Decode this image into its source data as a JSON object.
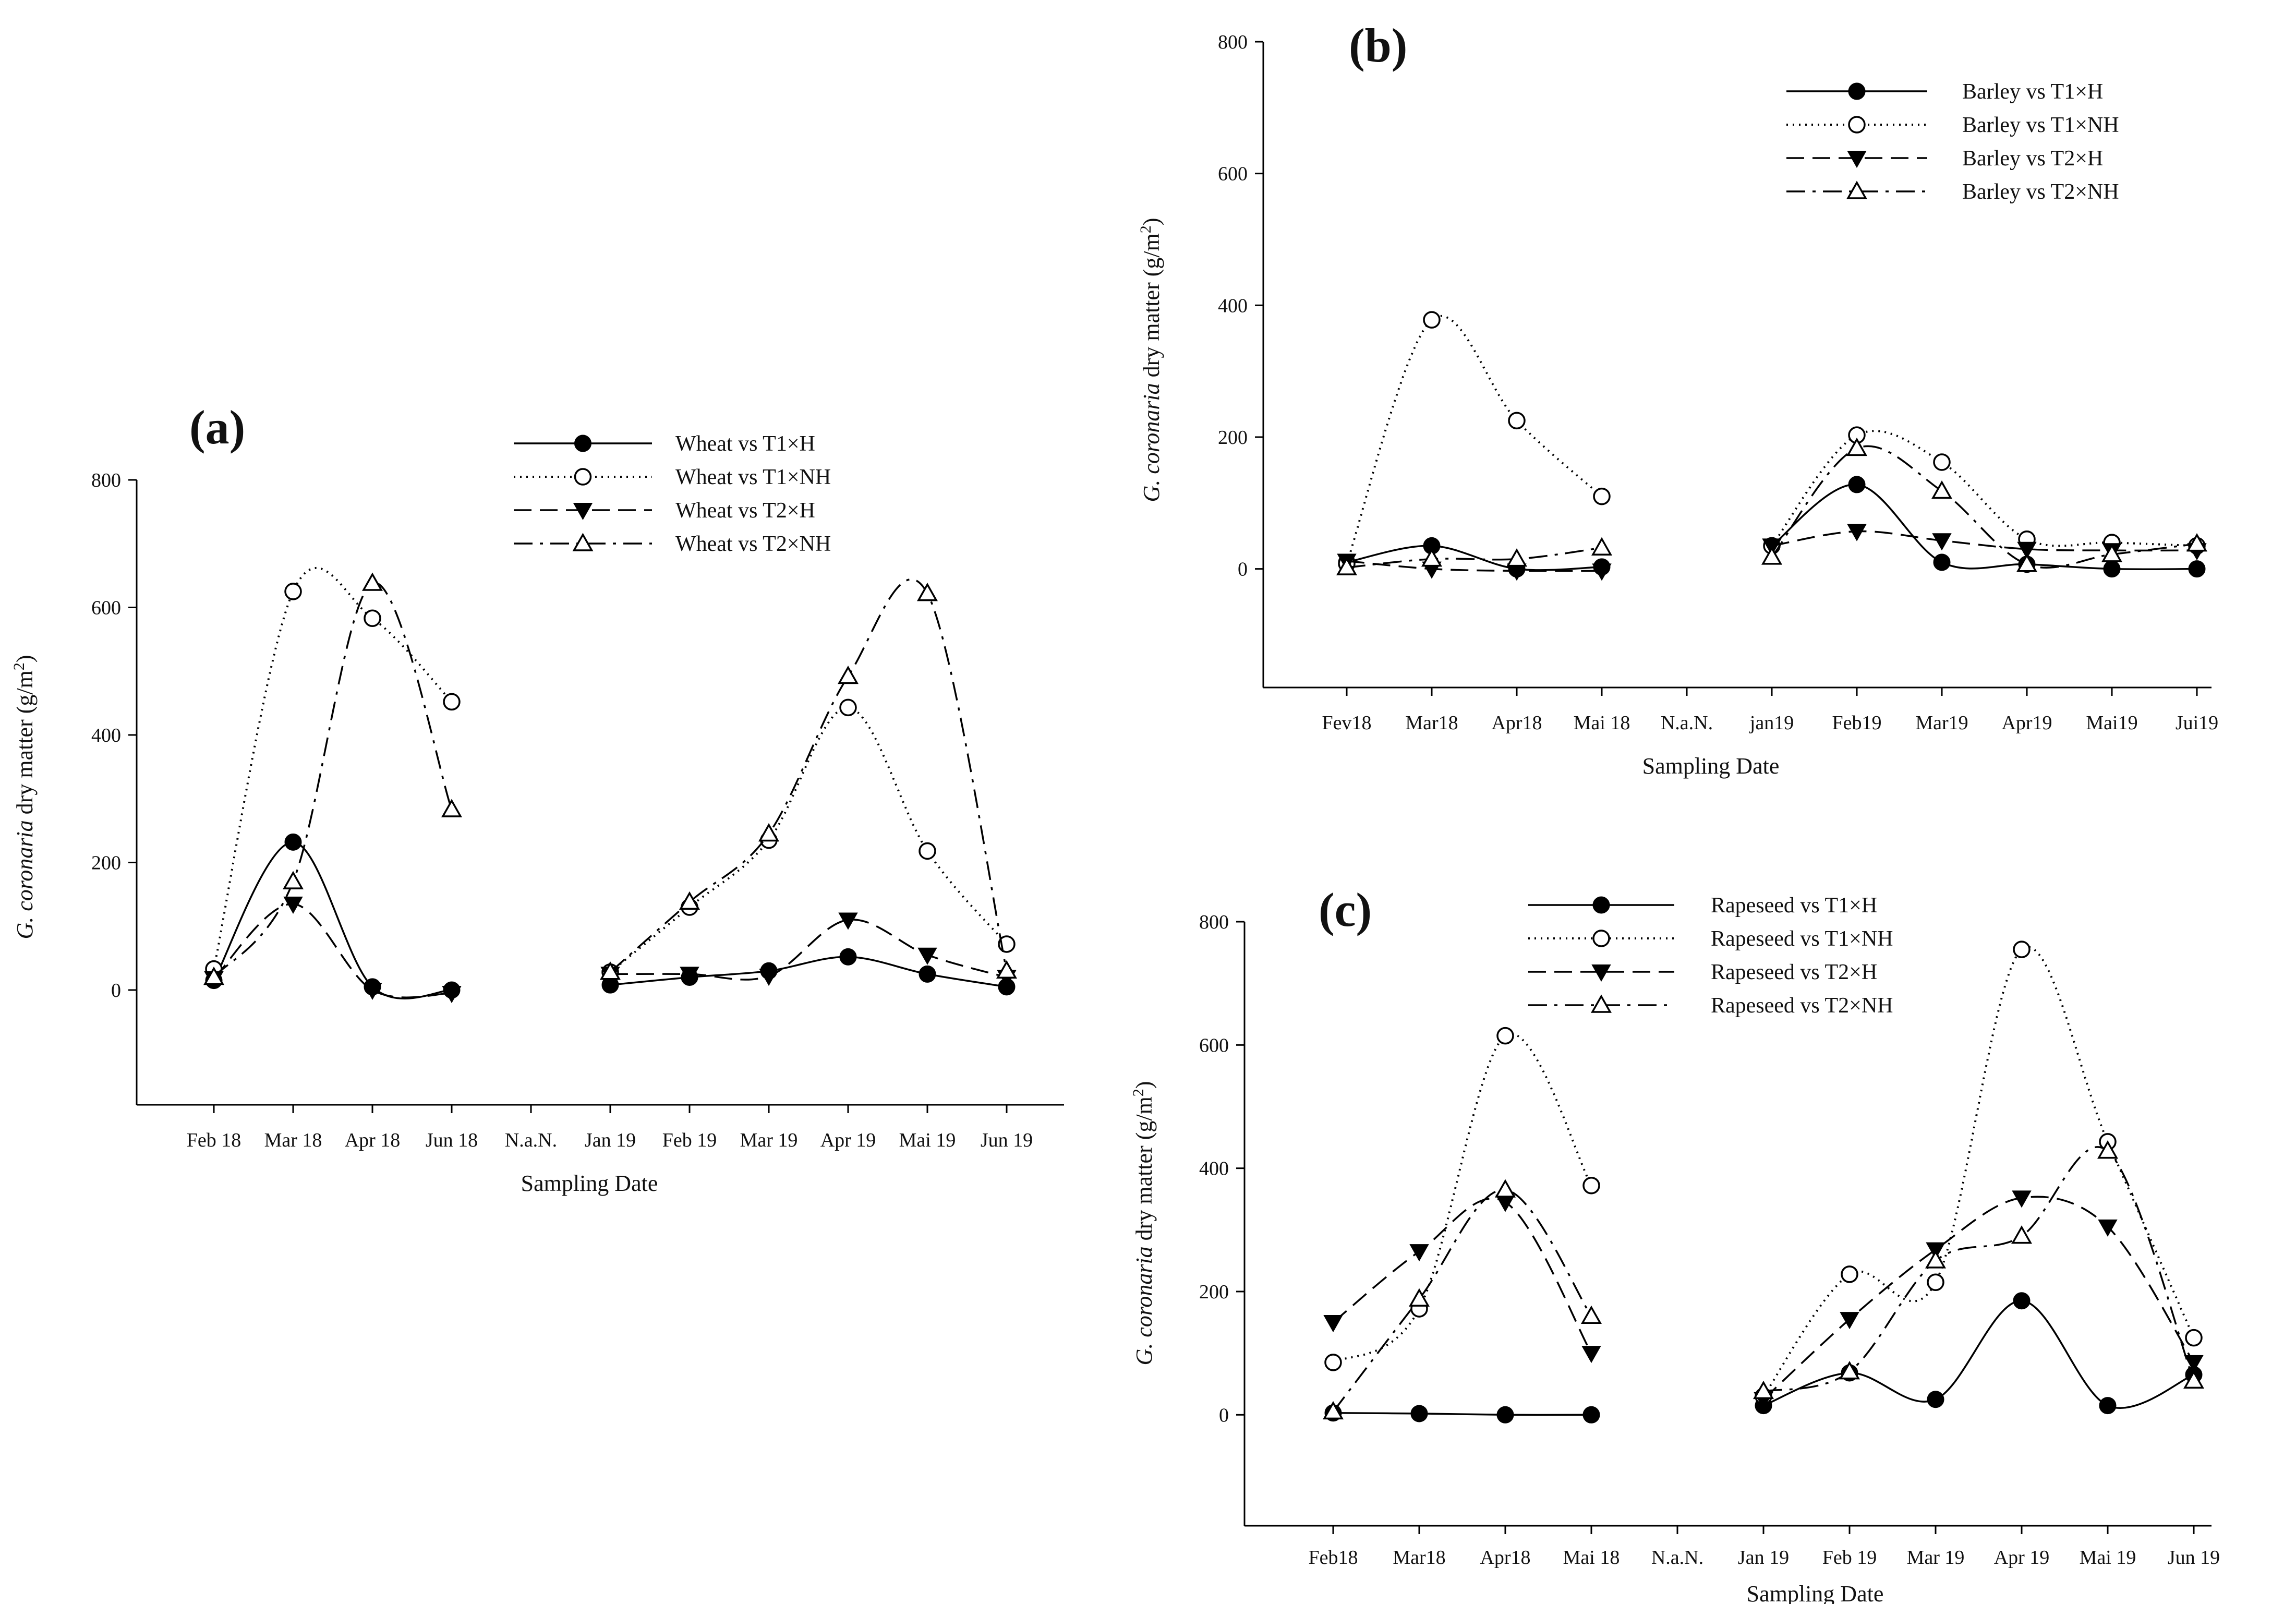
{
  "chart_data": [
    {
      "id": "a",
      "type": "line",
      "panel_label": "(a)",
      "title": "",
      "xlabel": "Sampling Date",
      "ylabel_species": "G. coronaria",
      "ylabel_rest": " dry matter (g/m",
      "ylabel_sup": "2",
      "ylabel_close": ")",
      "categories": [
        "Feb 18",
        "Mar 18",
        "Apr 18",
        "Jun 18",
        "N.a.N.",
        "Jan 19",
        "Feb 19",
        "Mar 19",
        "Apr 19",
        "Mai 19",
        "Jun 19"
      ],
      "ylim": [
        -180,
        800
      ],
      "yticks": [
        0,
        200,
        400,
        600,
        800
      ],
      "legend_position": "top-center",
      "series": [
        {
          "name": "Wheat vs T1×H",
          "style": "solid",
          "marker": "circle-filled",
          "values": [
            15,
            232,
            5,
            0,
            null,
            8,
            20,
            30,
            52,
            25,
            5
          ]
        },
        {
          "name": "Wheat vs T1×NH",
          "style": "dotted",
          "marker": "circle-open",
          "values": [
            33,
            625,
            583,
            452,
            null,
            28,
            130,
            235,
            443,
            218,
            72
          ]
        },
        {
          "name": "Wheat vs T2×H",
          "style": "dashed",
          "marker": "triangle-down-filled",
          "values": [
            18,
            135,
            0,
            -5,
            null,
            25,
            25,
            22,
            110,
            55,
            20
          ]
        },
        {
          "name": "Wheat vs T2×NH",
          "style": "dashdot",
          "marker": "triangle-up-open",
          "values": [
            20,
            170,
            638,
            283,
            null,
            28,
            138,
            245,
            492,
            622,
            30
          ]
        }
      ]
    },
    {
      "id": "b",
      "type": "line",
      "panel_label": "(b)",
      "title": "",
      "xlabel": "Sampling Date",
      "ylabel_species": "G. coronaria",
      "ylabel_rest": " dry matter (g/m",
      "ylabel_sup": "2",
      "ylabel_close": ")",
      "categories": [
        "Fev18",
        "Mar18",
        "Apr18",
        "Mai 18",
        "N.a.N.",
        "jan19",
        "Feb19",
        "Mar19",
        "Apr19",
        "Mai19",
        "Jui19"
      ],
      "ylim": [
        -180,
        800
      ],
      "yticks": [
        0,
        200,
        400,
        600,
        800
      ],
      "legend_position": "top-right",
      "series": [
        {
          "name": "Barley vs T1×H",
          "style": "solid",
          "marker": "circle-filled",
          "values": [
            10,
            35,
            0,
            3,
            null,
            35,
            128,
            10,
            7,
            0,
            0
          ]
        },
        {
          "name": "Barley vs T1×NH",
          "style": "dotted",
          "marker": "circle-open",
          "values": [
            8,
            378,
            225,
            110,
            null,
            35,
            203,
            162,
            45,
            40,
            35
          ]
        },
        {
          "name": "Barley vs T2×H",
          "style": "dashed",
          "marker": "triangle-down-filled",
          "values": [
            12,
            0,
            -3,
            -3,
            null,
            35,
            57,
            43,
            30,
            28,
            28
          ]
        },
        {
          "name": "Barley vs T2×NH",
          "style": "dashdot",
          "marker": "triangle-up-open",
          "values": [
            2,
            15,
            15,
            32,
            null,
            18,
            183,
            118,
            7,
            22,
            38
          ]
        }
      ]
    },
    {
      "id": "c",
      "type": "line",
      "panel_label": "(c)",
      "title": "",
      "xlabel": "Sampling Date",
      "ylabel_species": "G. coronaria",
      "ylabel_rest": " dry matter (g/m",
      "ylabel_sup": "2",
      "ylabel_close": ")",
      "categories": [
        "Feb18",
        "Mar18",
        "Apr18",
        "Mai 18",
        "N.a.N.",
        "Jan 19",
        "Feb 19",
        "Mar 19",
        "Apr 19",
        "Mai 19",
        "Jun 19"
      ],
      "ylim": [
        -180,
        800
      ],
      "yticks": [
        0,
        200,
        400,
        600,
        800
      ],
      "legend_position": "top-center",
      "series": [
        {
          "name": "Rapeseed vs T1×H",
          "style": "solid",
          "marker": "circle-filled",
          "values": [
            3,
            2,
            0,
            0,
            null,
            15,
            68,
            25,
            185,
            15,
            65
          ]
        },
        {
          "name": "Rapeseed vs T1×NH",
          "style": "dotted",
          "marker": "circle-open",
          "values": [
            85,
            172,
            615,
            372,
            null,
            30,
            228,
            215,
            755,
            443,
            125
          ]
        },
        {
          "name": "Rapeseed vs T2×H",
          "style": "dashed",
          "marker": "triangle-down-filled",
          "values": [
            150,
            265,
            345,
            100,
            null,
            25,
            155,
            268,
            352,
            305,
            85
          ]
        },
        {
          "name": "Rapeseed vs T2×NH",
          "style": "dashdot",
          "marker": "triangle-up-open",
          "values": [
            5,
            188,
            365,
            160,
            null,
            38,
            70,
            250,
            290,
            428,
            55
          ]
        }
      ]
    }
  ]
}
